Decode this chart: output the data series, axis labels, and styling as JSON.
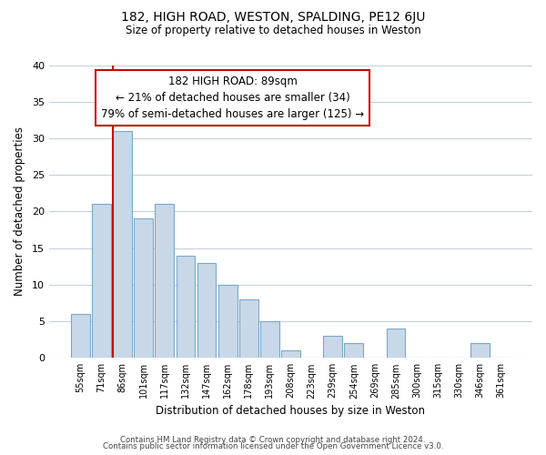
{
  "title": "182, HIGH ROAD, WESTON, SPALDING, PE12 6JU",
  "subtitle": "Size of property relative to detached houses in Weston",
  "xlabel": "Distribution of detached houses by size in Weston",
  "ylabel": "Number of detached properties",
  "bar_labels": [
    "55sqm",
    "71sqm",
    "86sqm",
    "101sqm",
    "117sqm",
    "132sqm",
    "147sqm",
    "162sqm",
    "178sqm",
    "193sqm",
    "208sqm",
    "223sqm",
    "239sqm",
    "254sqm",
    "269sqm",
    "285sqm",
    "300sqm",
    "315sqm",
    "330sqm",
    "346sqm",
    "361sqm"
  ],
  "bar_values": [
    6,
    21,
    31,
    19,
    21,
    14,
    13,
    10,
    8,
    5,
    1,
    0,
    3,
    2,
    0,
    4,
    0,
    0,
    0,
    2,
    0
  ],
  "bar_color": "#c8d8e8",
  "bar_edge_color": "#7aa8c8",
  "ylim": [
    0,
    40
  ],
  "yticks": [
    0,
    5,
    10,
    15,
    20,
    25,
    30,
    35,
    40
  ],
  "property_line_index": 2,
  "property_line_color": "#cc0000",
  "annotation_line1": "182 HIGH ROAD: 89sqm",
  "annotation_line2": "← 21% of detached houses are smaller (34)",
  "annotation_line3": "79% of semi-detached houses are larger (125) →",
  "footer_line1": "Contains HM Land Registry data © Crown copyright and database right 2024.",
  "footer_line2": "Contains public sector information licensed under the Open Government Licence v3.0.",
  "background_color": "#ffffff",
  "grid_color": "#c8d0d8"
}
